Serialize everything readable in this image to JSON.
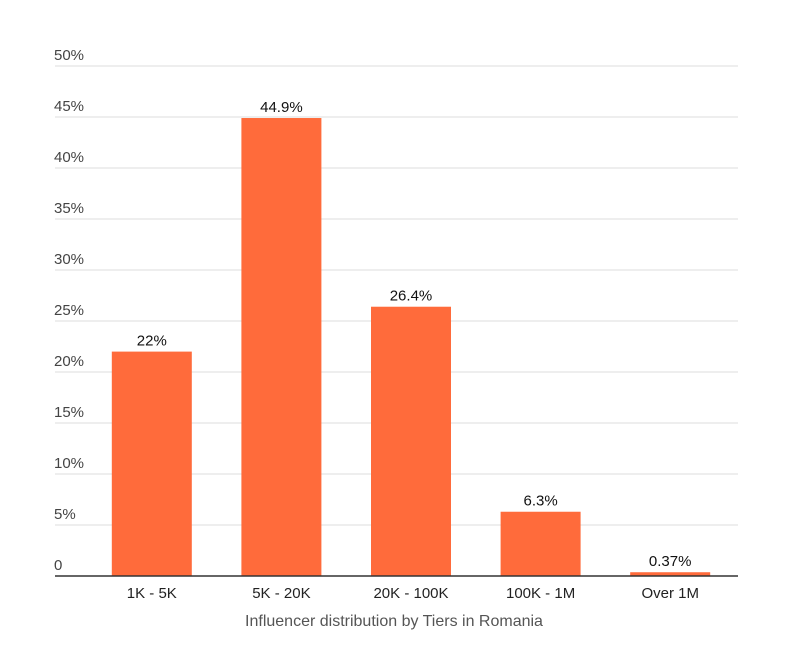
{
  "chart_data": {
    "type": "bar",
    "title": "",
    "xlabel": "Influencer distribution by Tiers in Romania",
    "ylabel": "",
    "categories": [
      "1K - 5K",
      "5K - 20K",
      "20K - 100K",
      "100K - 1M",
      "Over 1M"
    ],
    "values": [
      22,
      44.9,
      26.4,
      6.3,
      0.37
    ],
    "data_labels": [
      "22%",
      "44.9%",
      "26.4%",
      "6.3%",
      "0.37%"
    ],
    "ylim": [
      0,
      50
    ],
    "y_ticks": [
      0,
      5,
      10,
      15,
      20,
      25,
      30,
      35,
      40,
      45,
      50
    ],
    "y_tick_labels": [
      "0",
      "5%",
      "10%",
      "15%",
      "20%",
      "25%",
      "30%",
      "35%",
      "40%",
      "45%",
      "50%"
    ],
    "grid": true,
    "legend": "none",
    "bar_color": "#ff6b3b"
  }
}
